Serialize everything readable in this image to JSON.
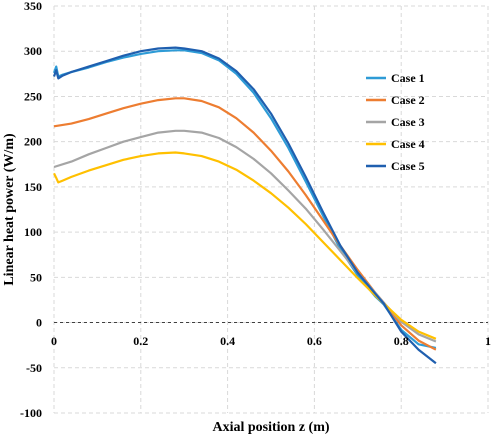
{
  "chart_data": {
    "type": "line",
    "title": "",
    "xlabel": "Axial position z (m)",
    "ylabel": "Linear heat power (W/m)",
    "xlim": [
      0,
      1
    ],
    "ylim": [
      -100,
      350
    ],
    "x_ticks": [
      "0",
      "0.2",
      "0.4",
      "0.6",
      "0.8",
      "1"
    ],
    "y_ticks": [
      "-100",
      "-50",
      "0",
      "50",
      "100",
      "150",
      "200",
      "250",
      "300",
      "350"
    ],
    "grid": "dashed",
    "zero_line": "dashed",
    "legend_position": "right",
    "series": [
      {
        "name": "Case 1",
        "color": "#2E9BD6",
        "points": [
          [
            0,
            276
          ],
          [
            0.005,
            283
          ],
          [
            0.01,
            272
          ],
          [
            0.02,
            274
          ],
          [
            0.04,
            277
          ],
          [
            0.08,
            282
          ],
          [
            0.12,
            288
          ],
          [
            0.16,
            293
          ],
          [
            0.2,
            297
          ],
          [
            0.24,
            300
          ],
          [
            0.28,
            301
          ],
          [
            0.3,
            301
          ],
          [
            0.34,
            298
          ],
          [
            0.38,
            290
          ],
          [
            0.42,
            275
          ],
          [
            0.46,
            254
          ],
          [
            0.5,
            226
          ],
          [
            0.54,
            193
          ],
          [
            0.58,
            156
          ],
          [
            0.62,
            118
          ],
          [
            0.66,
            81
          ],
          [
            0.7,
            52
          ],
          [
            0.74,
            29
          ],
          [
            0.76,
            20
          ],
          [
            0.8,
            -8
          ],
          [
            0.84,
            -24
          ],
          [
            0.88,
            -28
          ]
        ]
      },
      {
        "name": "Case 2",
        "color": "#ED7D31",
        "points": [
          [
            0,
            217
          ],
          [
            0.04,
            220
          ],
          [
            0.08,
            225
          ],
          [
            0.12,
            231
          ],
          [
            0.16,
            237
          ],
          [
            0.2,
            242
          ],
          [
            0.24,
            246
          ],
          [
            0.28,
            248
          ],
          [
            0.3,
            248
          ],
          [
            0.34,
            245
          ],
          [
            0.38,
            238
          ],
          [
            0.42,
            226
          ],
          [
            0.46,
            210
          ],
          [
            0.5,
            190
          ],
          [
            0.54,
            167
          ],
          [
            0.58,
            141
          ],
          [
            0.62,
            113
          ],
          [
            0.66,
            85
          ],
          [
            0.7,
            58
          ],
          [
            0.74,
            33
          ],
          [
            0.76,
            22
          ],
          [
            0.8,
            -3
          ],
          [
            0.84,
            -20
          ],
          [
            0.88,
            -30
          ]
        ]
      },
      {
        "name": "Case 3",
        "color": "#A5A5A5",
        "points": [
          [
            0,
            172
          ],
          [
            0.04,
            178
          ],
          [
            0.08,
            186
          ],
          [
            0.12,
            193
          ],
          [
            0.16,
            200
          ],
          [
            0.2,
            205
          ],
          [
            0.24,
            210
          ],
          [
            0.28,
            212
          ],
          [
            0.3,
            212
          ],
          [
            0.34,
            210
          ],
          [
            0.38,
            204
          ],
          [
            0.42,
            194
          ],
          [
            0.46,
            181
          ],
          [
            0.5,
            165
          ],
          [
            0.54,
            146
          ],
          [
            0.58,
            126
          ],
          [
            0.62,
            103
          ],
          [
            0.66,
            79
          ],
          [
            0.7,
            55
          ],
          [
            0.74,
            33
          ],
          [
            0.76,
            22
          ],
          [
            0.8,
            1
          ],
          [
            0.84,
            -13
          ],
          [
            0.88,
            -21
          ]
        ]
      },
      {
        "name": "Case 4",
        "color": "#FFC000",
        "points": [
          [
            0,
            165
          ],
          [
            0.005,
            160
          ],
          [
            0.01,
            155
          ],
          [
            0.02,
            157
          ],
          [
            0.04,
            161
          ],
          [
            0.08,
            168
          ],
          [
            0.12,
            174
          ],
          [
            0.16,
            180
          ],
          [
            0.2,
            184
          ],
          [
            0.24,
            187
          ],
          [
            0.28,
            188
          ],
          [
            0.3,
            187
          ],
          [
            0.34,
            184
          ],
          [
            0.38,
            178
          ],
          [
            0.42,
            169
          ],
          [
            0.46,
            157
          ],
          [
            0.5,
            143
          ],
          [
            0.54,
            127
          ],
          [
            0.58,
            109
          ],
          [
            0.62,
            89
          ],
          [
            0.66,
            69
          ],
          [
            0.7,
            49
          ],
          [
            0.74,
            30
          ],
          [
            0.76,
            21
          ],
          [
            0.8,
            3
          ],
          [
            0.84,
            -10
          ],
          [
            0.88,
            -18
          ]
        ]
      },
      {
        "name": "Case 5",
        "color": "#1F5FAF",
        "points": [
          [
            0,
            272
          ],
          [
            0.005,
            279
          ],
          [
            0.01,
            270
          ],
          [
            0.02,
            273
          ],
          [
            0.04,
            277
          ],
          [
            0.08,
            283
          ],
          [
            0.12,
            289
          ],
          [
            0.16,
            295
          ],
          [
            0.2,
            300
          ],
          [
            0.24,
            303
          ],
          [
            0.28,
            304
          ],
          [
            0.3,
            303
          ],
          [
            0.34,
            300
          ],
          [
            0.38,
            292
          ],
          [
            0.42,
            278
          ],
          [
            0.46,
            258
          ],
          [
            0.5,
            231
          ],
          [
            0.54,
            198
          ],
          [
            0.58,
            161
          ],
          [
            0.62,
            122
          ],
          [
            0.66,
            85
          ],
          [
            0.7,
            55
          ],
          [
            0.74,
            32
          ],
          [
            0.76,
            21
          ],
          [
            0.8,
            -10
          ],
          [
            0.84,
            -30
          ],
          [
            0.88,
            -45
          ]
        ]
      }
    ]
  }
}
